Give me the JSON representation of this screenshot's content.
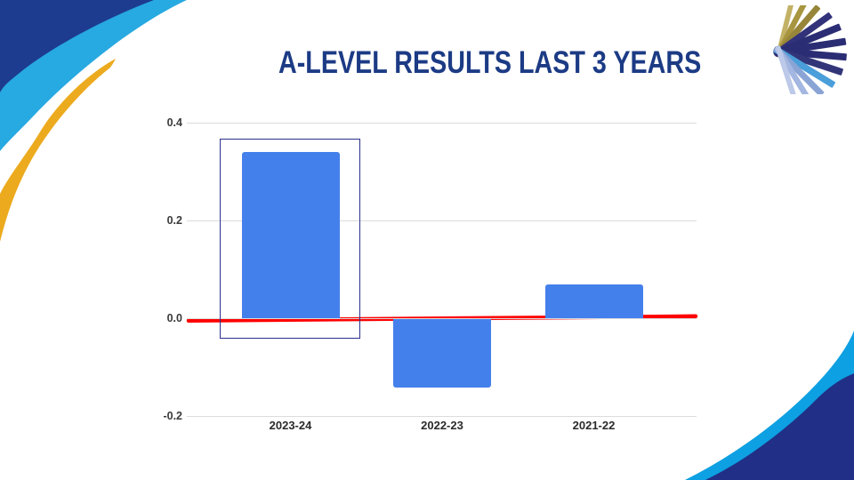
{
  "slide": {
    "title": "A-LEVEL RESULTS LAST 3 YEARS",
    "title_color": "#1c3b85"
  },
  "chart_data": {
    "type": "bar",
    "title": "A-LEVEL RESULTS LAST 3 YEARS",
    "categories": [
      "2023-24",
      "2022-23",
      "2021-22"
    ],
    "values": [
      0.34,
      -0.14,
      0.07
    ],
    "xlabel": "",
    "ylabel": "",
    "y_ticks": [
      0.4,
      0.2,
      0.0,
      -0.2
    ],
    "ylim": [
      -0.25,
      0.45
    ],
    "grid": true,
    "legend": "none",
    "bar_color": "#4480ec",
    "annotations": [
      {
        "type": "trendline",
        "color": "#ff0000",
        "y_start": -0.005,
        "y_end": 0.004,
        "description": "red horizontal reference line near zero, slight upward slope to the right"
      },
      {
        "type": "highlight-box",
        "category": "2023-24",
        "color": "#2b2f8e",
        "description": "navy rectangle outline around the 2023-24 bar"
      }
    ]
  },
  "theme": {
    "navy": "#1d3c8f",
    "sky_blue": "#27a9e1",
    "gold": "#ecaa1e",
    "deep_navy": "#212f86",
    "azure": "#0da0e2",
    "grid_gray": "#dcdcdc"
  },
  "logo": {
    "name": "fan-of-blades-logo",
    "wedge_colors": [
      "#c3b266",
      "#a89540",
      "#97863a",
      "#32327a",
      "#2b2d74",
      "#2b2d74",
      "#2b2d74",
      "#323678",
      "#4a9eda",
      "#8aa4d6",
      "#a3b7e0",
      "#bcc9e8"
    ]
  }
}
